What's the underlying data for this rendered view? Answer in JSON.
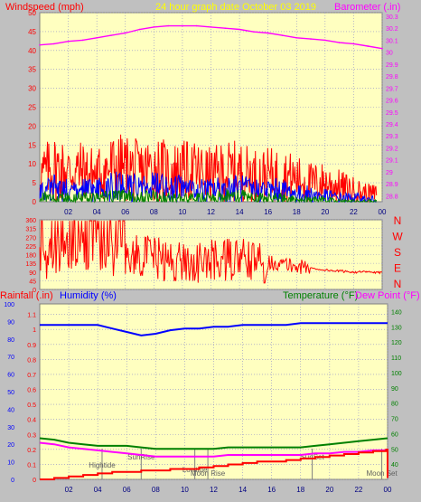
{
  "colors": {
    "window_bg": "#c0c0c0",
    "plot_bg": "#ffffc0",
    "grid": "#8c8ccc",
    "wind_label": "#ff0000",
    "baro": "#ff00ff",
    "title": "#ffff00",
    "gust": "#ff0000",
    "avg": "#0000ff",
    "low": "#008000",
    "dir": "#ff0000",
    "humidity": "#0000ff",
    "rain": "#ff0000",
    "temp": "#008000",
    "dew": "#ff00ff",
    "event": "#808080"
  },
  "title": "24 hour graph date   October 03 2019",
  "wind_chart": {
    "ylabel_left": "Windspeed (mph)",
    "ylabel_right": "Barometer (.in)",
    "left_ticks": [
      "50",
      "45",
      "40",
      "35",
      "30",
      "25",
      "20",
      "15",
      "10",
      "5",
      "0"
    ],
    "right_ticks": [
      "30.3",
      "30.2",
      "30.1",
      "30",
      "29.9",
      "29.8",
      "29.7",
      "29.6",
      "29.5",
      "29.4",
      "29.3",
      "29.2",
      "29.1",
      "29",
      "28.9",
      "28.8"
    ],
    "x_ticks": [
      "02",
      "04",
      "06",
      "08",
      "10",
      "12",
      "14",
      "16",
      "18",
      "20",
      "22",
      "00"
    ]
  },
  "dir_chart": {
    "left_ticks": [
      "360",
      "315",
      "270",
      "225",
      "180",
      "135",
      "90",
      "45",
      "0"
    ],
    "compass": [
      "N",
      "W",
      "S",
      "E",
      "N"
    ]
  },
  "bottom_chart": {
    "label_rain": "Rainfall (.in)",
    "label_hum": "Humidity (%)",
    "label_temp": "Temperature (°F)",
    "label_dew": "Dew Point (°F)",
    "left_pct_ticks": [
      "100",
      "90",
      "80",
      "70",
      "60",
      "50",
      "40",
      "30",
      "20",
      "10",
      "0"
    ],
    "left_rain_ticks": [
      "1.1",
      "1",
      "0.9",
      "0.8",
      "0.7",
      "0.6",
      "0.5",
      "0.4",
      "0.3",
      "0.2",
      "0.1",
      "0"
    ],
    "right_ticks": [
      "140",
      "130",
      "120",
      "110",
      "100",
      "90",
      "80",
      "70",
      "60",
      "50",
      "40"
    ],
    "x_ticks": [
      "02",
      "04",
      "06",
      "08",
      "10",
      "12",
      "14",
      "16",
      "18",
      "20",
      "22",
      "00"
    ],
    "events": [
      {
        "label": "Hightide",
        "x": 4.3
      },
      {
        "label": "SunRise",
        "x": 7.0
      },
      {
        "label": "Lowtide",
        "x": 10.7
      },
      {
        "label": "Moon Rise",
        "x": 11.6
      },
      {
        "label": "SunSet",
        "x": 18.8
      },
      {
        "label": "Moon Set",
        "x": 23.6
      }
    ]
  },
  "chart_data": [
    {
      "type": "line",
      "title": "24 hour graph date   October 03 2019",
      "xlabel": "",
      "ylabel": "Windspeed (mph)",
      "ylim": [
        0,
        50
      ],
      "y2label": "Barometer (.in)",
      "y2lim": [
        28.75,
        30.33
      ],
      "xlim": [
        0,
        24
      ],
      "grid": true,
      "series": [
        {
          "key": "gust",
          "axis": "left",
          "style": "dense",
          "x": [
            0,
            1,
            2,
            3,
            4,
            5,
            6,
            7,
            8,
            9,
            10,
            11,
            12,
            13,
            14,
            15,
            16,
            17,
            18,
            19,
            20,
            21,
            22,
            23,
            23.6
          ],
          "values": [
            7,
            9,
            8,
            8,
            7,
            9,
            9,
            8,
            9,
            8,
            8,
            8,
            7,
            8,
            8,
            7,
            7,
            7,
            6,
            5,
            5,
            4,
            3,
            2,
            2
          ]
        },
        {
          "key": "avg",
          "axis": "left",
          "style": "dense",
          "x": [
            0,
            1,
            2,
            3,
            4,
            5,
            6,
            7,
            8,
            9,
            10,
            11,
            12,
            13,
            14,
            15,
            16,
            17,
            18,
            19,
            20,
            21,
            22,
            23,
            23.6
          ],
          "values": [
            3,
            3.5,
            3,
            3,
            3,
            4,
            4,
            3.5,
            4,
            3.5,
            3.5,
            3,
            3,
            3.5,
            3.5,
            3,
            3,
            3,
            2,
            2,
            1.5,
            1,
            1,
            0.5,
            0.5
          ]
        },
        {
          "key": "low",
          "axis": "left",
          "style": "dense",
          "x": [
            0,
            1,
            2,
            3,
            4,
            5,
            6,
            7,
            8,
            9,
            10,
            11,
            12,
            13,
            14,
            15,
            16,
            17,
            18,
            19,
            20,
            21,
            22,
            23,
            23.6
          ],
          "values": [
            1,
            1.5,
            1,
            1,
            1,
            1.5,
            1.5,
            1,
            1.5,
            1,
            1,
            1,
            1,
            1.5,
            1.5,
            1,
            1,
            1,
            0.5,
            0.5,
            0.5,
            0,
            0,
            0,
            0
          ]
        },
        {
          "key": "baro",
          "axis": "right",
          "x": [
            0,
            1,
            2,
            3,
            4,
            5,
            6,
            7,
            8,
            9,
            10,
            11,
            12,
            13,
            14,
            15,
            16,
            17,
            18,
            19,
            20,
            21,
            22,
            23,
            24
          ],
          "values": [
            30.06,
            30.07,
            30.09,
            30.1,
            30.12,
            30.14,
            30.16,
            30.19,
            30.21,
            30.22,
            30.22,
            30.22,
            30.21,
            30.2,
            30.19,
            30.17,
            30.16,
            30.14,
            30.12,
            30.11,
            30.1,
            30.08,
            30.07,
            30.05,
            30.03
          ]
        }
      ]
    },
    {
      "type": "line",
      "title": "",
      "xlabel": "",
      "ylabel": "",
      "ylim": [
        0,
        360
      ],
      "xlim": [
        0,
        24
      ],
      "grid": true,
      "series": [
        {
          "key": "dir",
          "style": "jagged",
          "x": [
            0,
            1,
            2,
            3,
            4,
            5,
            6,
            7,
            8,
            9,
            10,
            11,
            12,
            13,
            14,
            15,
            16,
            17,
            18,
            19,
            20,
            21,
            22,
            23,
            24
          ],
          "values": [
            150,
            180,
            200,
            190,
            220,
            180,
            160,
            180,
            170,
            140,
            150,
            130,
            150,
            150,
            160,
            140,
            140,
            130,
            120,
            110,
            100,
            95,
            90,
            90,
            85
          ]
        }
      ]
    },
    {
      "type": "line",
      "title": "",
      "xlabel": "",
      "ylabel": "Humidity (%)",
      "ylim": [
        0,
        100
      ],
      "y2label": "Temperature (°F)",
      "y2lim": [
        30,
        145
      ],
      "xlim": [
        0,
        24
      ],
      "grid": true,
      "series": [
        {
          "key": "humidity",
          "axis": "left",
          "x": [
            0,
            1,
            2,
            3,
            4,
            5,
            6,
            7,
            8,
            9,
            10,
            11,
            12,
            13,
            14,
            15,
            16,
            17,
            18,
            19,
            20,
            21,
            22,
            23,
            24
          ],
          "values": [
            88,
            88,
            88,
            88,
            88,
            86,
            84,
            82,
            83,
            85,
            86,
            86,
            87,
            87,
            88,
            88,
            88,
            88,
            89,
            89,
            89,
            89,
            89,
            89,
            89
          ]
        },
        {
          "key": "temp",
          "axis": "right",
          "x": [
            0,
            1,
            2,
            3,
            4,
            5,
            6,
            7,
            8,
            9,
            10,
            11,
            12,
            13,
            14,
            15,
            16,
            17,
            18,
            19,
            20,
            21,
            22,
            23,
            24
          ],
          "values": [
            57,
            56,
            54,
            53,
            52,
            52,
            52,
            51,
            50,
            50,
            50,
            50,
            50,
            51,
            51,
            51,
            51,
            51,
            51,
            52,
            53,
            54,
            55,
            56,
            57
          ]
        },
        {
          "key": "dew",
          "axis": "right",
          "x": [
            0,
            1,
            2,
            3,
            4,
            5,
            6,
            7,
            8,
            9,
            10,
            11,
            12,
            13,
            14,
            15,
            16,
            17,
            18,
            19,
            20,
            21,
            22,
            23,
            24
          ],
          "values": [
            54,
            53,
            51,
            50,
            49,
            48,
            47,
            46,
            45,
            45,
            45,
            45,
            45,
            46,
            46,
            46,
            46,
            46,
            46,
            47,
            47,
            48,
            48,
            49,
            49
          ]
        },
        {
          "key": "rain",
          "axis": "left",
          "style": "step",
          "x": [
            0,
            1,
            2,
            3,
            4,
            5,
            6,
            7,
            8,
            9,
            10,
            11,
            12,
            13,
            14,
            15,
            16,
            17,
            18,
            19,
            20,
            21,
            22,
            23,
            23.9,
            24
          ],
          "values": [
            0,
            1,
            2,
            3,
            4,
            5,
            5,
            6,
            6,
            7,
            7,
            8,
            9,
            10,
            11,
            12,
            12,
            13,
            14,
            15,
            16,
            17,
            18,
            19,
            20,
            1
          ]
        }
      ]
    }
  ]
}
